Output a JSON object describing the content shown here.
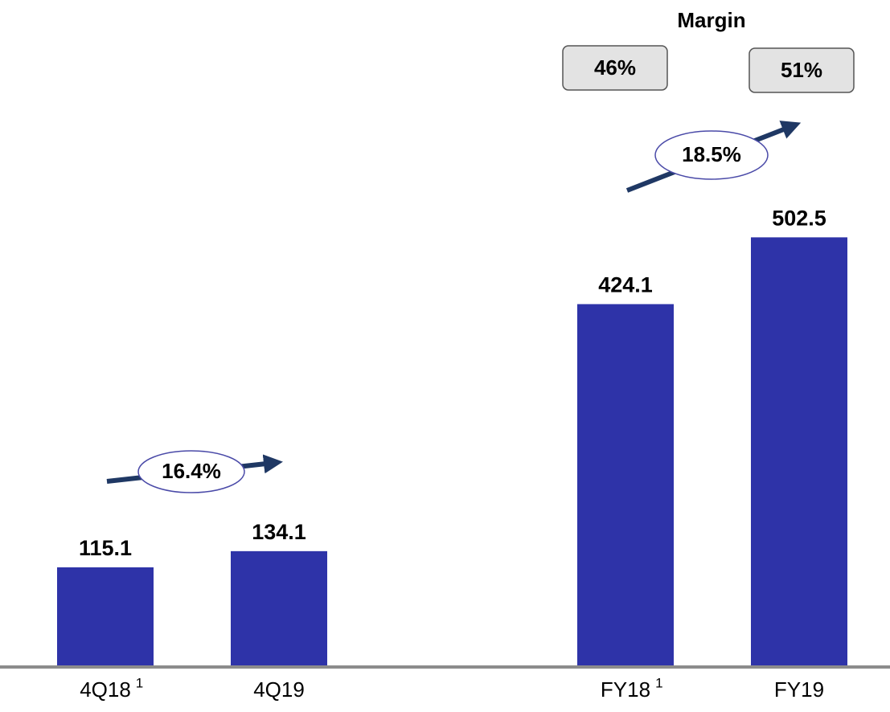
{
  "chart_data": {
    "type": "bar",
    "categories": [
      "4Q18",
      "4Q19",
      "FY18",
      "FY19"
    ],
    "category_notes": [
      "1",
      null,
      "1",
      null
    ],
    "values": [
      115.1,
      134.1,
      424.1,
      502.5
    ],
    "color": "#2e33a8",
    "growth": {
      "values": [
        16.4,
        18.5
      ],
      "value_labels": [
        "16.4%",
        "18.5%"
      ]
    },
    "margin": {
      "title": "Margin",
      "values": [
        46,
        51
      ],
      "value_labels": [
        "46%",
        "51%"
      ]
    }
  }
}
